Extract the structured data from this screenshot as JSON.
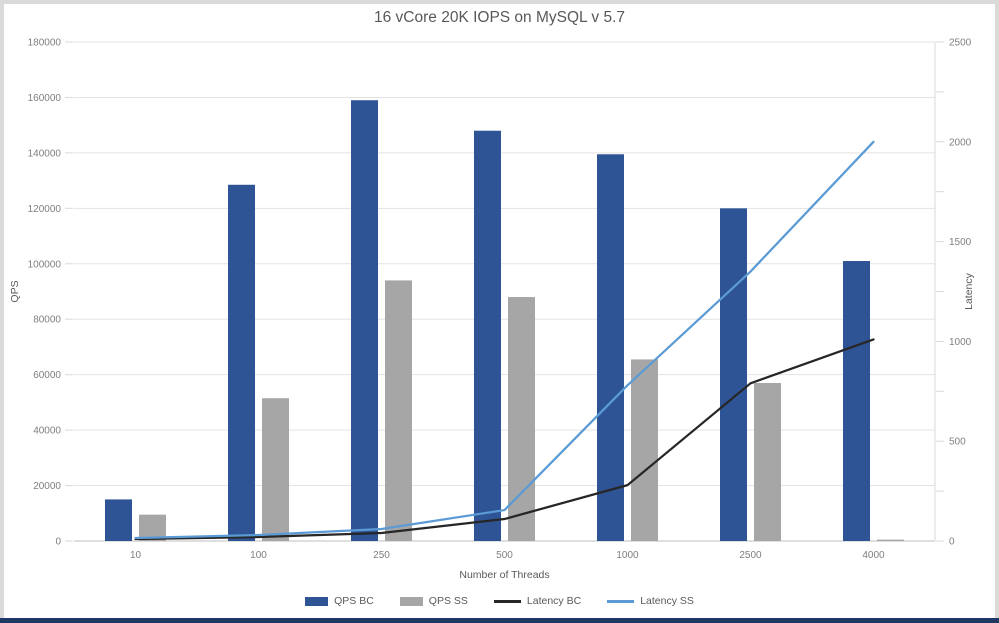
{
  "title": "16 vCore 20K IOPS on MySQL v 5.7",
  "chart_data": {
    "type": "bar+line combo",
    "title": "16 vCore 20K IOPS on MySQL v 5.7",
    "categories": [
      "10",
      "100",
      "250",
      "500",
      "1000",
      "2500",
      "4000"
    ],
    "x_axis_title": "Number of Threads",
    "left_axis": {
      "label": "QPS",
      "min": 0,
      "max": 180000,
      "step": 20000
    },
    "right_axis": {
      "label": "Latency",
      "min": 0,
      "max": 2500,
      "step": 500,
      "minor_step": 250
    },
    "bar_series": [
      {
        "name": "QPS BC",
        "color": "#2f5496",
        "axis": "left",
        "values": [
          15000,
          128500,
          159000,
          148000,
          139500,
          120000,
          101000
        ]
      },
      {
        "name": "QPS SS",
        "color": "#a6a6a6",
        "axis": "left",
        "values": [
          9500,
          51500,
          94000,
          88000,
          65500,
          57000,
          500
        ]
      }
    ],
    "line_series": [
      {
        "name": "Latency BC",
        "color": "#262626",
        "axis": "right",
        "values": [
          10,
          20,
          40,
          110,
          280,
          790,
          1010
        ]
      },
      {
        "name": "Latency SS",
        "color": "#5b9bd5",
        "axis": "right",
        "values": [
          15,
          30,
          60,
          155,
          780,
          1350,
          2000
        ]
      }
    ],
    "grid": true,
    "legend_position": "bottom",
    "colors": {
      "gridline": "#e3e3e3",
      "baseline": "#bfbfbf",
      "axis_line": "#d9d9d9",
      "text": "#595959",
      "frame_bottom": "#1f3864"
    }
  }
}
